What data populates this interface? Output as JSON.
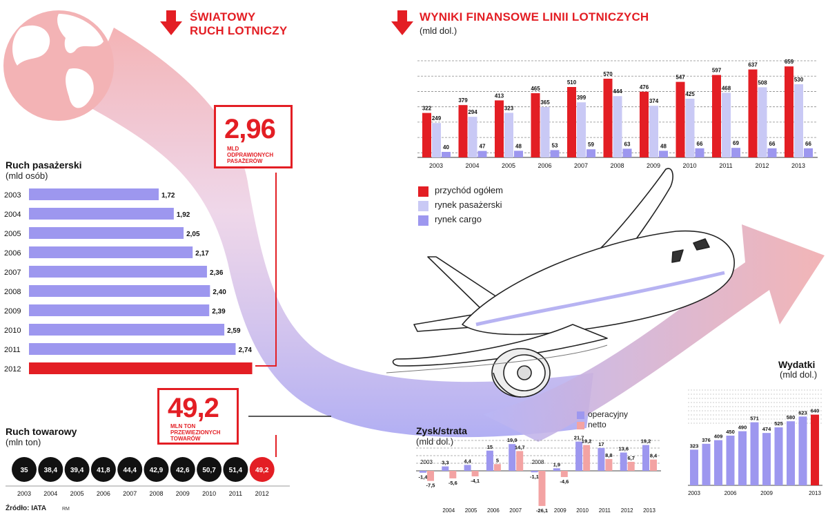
{
  "headers": {
    "world_traffic": [
      "ŚWIATOWY",
      "RUCH LOTNICZY"
    ],
    "financial_results": "WYNIKI FINANSOWE LINII LOTNICZYCH",
    "financial_unit": "(mld dol.)"
  },
  "callouts": {
    "passengers_value": "2,96",
    "passengers_caption": [
      "MLD",
      "ODPRAWIONYCH",
      "PASAŻERÓW"
    ],
    "cargo_value": "49,2",
    "cargo_caption": [
      "MLN TON",
      "PRZEWIEZIONYCH",
      "TOWARÓW"
    ]
  },
  "legend": [
    {
      "label": "przychód ogółem",
      "color": "#e31e24"
    },
    {
      "label": "rynek pasażerski",
      "color": "#c9c9f5"
    },
    {
      "label": "rynek cargo",
      "color": "#9d97ef"
    }
  ],
  "profit_legend": [
    {
      "label": "operacyjny",
      "color": "#9d97ef"
    },
    {
      "label": "netto",
      "color": "#f3a3a3"
    }
  ],
  "source": "Źródło: IATA",
  "author": "RM",
  "colors": {
    "red": "#e31e24",
    "purple": "#9d97ef",
    "lavender": "#c9c9f5",
    "pink": "#f3a3a3",
    "black": "#111111"
  },
  "chart_data": [
    {
      "id": "passenger-traffic",
      "type": "bar",
      "orientation": "horizontal",
      "title": "Ruch pasażerski",
      "unit": "(mld osób)",
      "categories": [
        "2003",
        "2004",
        "2005",
        "2006",
        "2007",
        "2008",
        "2009",
        "2010",
        "2011",
        "2012"
      ],
      "values": [
        1.72,
        1.92,
        2.05,
        2.17,
        2.36,
        2.4,
        2.39,
        2.59,
        2.74,
        2.96
      ],
      "labels": [
        "1,72",
        "1,92",
        "2,05",
        "2,17",
        "2,36",
        "2,40",
        "2,39",
        "2,59",
        "2,74",
        ""
      ],
      "highlight": "2012"
    },
    {
      "id": "cargo-traffic",
      "type": "bubble-row",
      "title": "Ruch towarowy",
      "unit": "(mln ton)",
      "categories": [
        "2003",
        "2004",
        "2005",
        "2006",
        "2007",
        "2008",
        "2009",
        "2010",
        "2011",
        "2012"
      ],
      "values": [
        35,
        38.4,
        39.4,
        41.8,
        44.4,
        42.9,
        42.6,
        50.7,
        51.4,
        49.2
      ],
      "labels": [
        "35",
        "38,4",
        "39,4",
        "41,8",
        "44,4",
        "42,9",
        "42,6",
        "50,7",
        "51,4",
        "49,2"
      ],
      "highlight": "2012"
    },
    {
      "id": "financial-results",
      "type": "bar",
      "categories": [
        "2003",
        "2004",
        "2005",
        "2006",
        "2007",
        "2008",
        "2009",
        "2010",
        "2011",
        "2012",
        "2013"
      ],
      "series": [
        {
          "name": "przychód ogółem",
          "values": [
            322,
            379,
            413,
            465,
            510,
            570,
            476,
            547,
            597,
            637,
            659
          ]
        },
        {
          "name": "rynek pasażerski",
          "values": [
            249,
            294,
            323,
            365,
            399,
            444,
            374,
            425,
            468,
            508,
            530
          ]
        },
        {
          "name": "rynek cargo",
          "values": [
            40,
            47,
            48,
            53,
            59,
            63,
            48,
            66,
            69,
            66,
            66
          ]
        }
      ],
      "ylim": [
        0,
        700
      ],
      "grid": true
    },
    {
      "id": "profit-loss",
      "type": "bar",
      "title": "Zysk/strata",
      "unit": "(mld dol.)",
      "categories": [
        "2003",
        "2004",
        "2005",
        "2006",
        "2007",
        "2008",
        "2009",
        "2010",
        "2011",
        "2012",
        "2013"
      ],
      "series": [
        {
          "name": "operacyjny",
          "values": [
            -1.4,
            3.3,
            4.4,
            15,
            19.9,
            -1.1,
            1.9,
            21.7,
            17,
            13.6,
            19.2
          ],
          "labels": [
            "-1,4",
            "3,3",
            "4,4",
            "15",
            "19,9",
            "-1,1",
            "1,9",
            "21,7",
            "17",
            "13,6",
            "19,2"
          ]
        },
        {
          "name": "netto",
          "values": [
            -7.5,
            -5.6,
            -4.1,
            5,
            14.7,
            -26.1,
            -4.6,
            19.2,
            8.8,
            6.7,
            8.4
          ],
          "labels": [
            "-7,5",
            "-5,6",
            "-4,1",
            "5",
            "14,7",
            "-26,1",
            "-4,6",
            "19,2",
            "8,8",
            "6,7",
            "8,4"
          ]
        }
      ],
      "grid": true
    },
    {
      "id": "expenses",
      "type": "bar",
      "title": "Wydatki",
      "unit": "(mld dol.)",
      "categories": [
        "2003",
        "2004",
        "2005",
        "2006",
        "2007",
        "2008",
        "2009",
        "2010",
        "2011",
        "2012",
        "2013"
      ],
      "tick_labels": [
        "2003",
        "",
        "",
        "2006",
        "",
        "",
        "2009",
        "",
        "",
        "",
        "2013"
      ],
      "values": [
        323,
        376,
        409,
        450,
        490,
        571,
        474,
        525,
        580,
        623,
        640
      ],
      "highlight": "2013",
      "grid": true
    }
  ]
}
